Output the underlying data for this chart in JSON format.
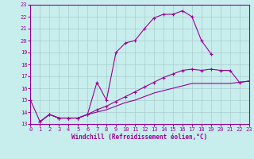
{
  "bg_color": "#c8eded",
  "line_color": "#990099",
  "grid_color": "#aacccc",
  "xlabel": "Windchill (Refroidissement éolien,°C)",
  "xlim": [
    0,
    23
  ],
  "ylim": [
    13,
    23
  ],
  "xticks": [
    0,
    1,
    2,
    3,
    4,
    5,
    6,
    7,
    8,
    9,
    10,
    11,
    12,
    13,
    14,
    15,
    16,
    17,
    18,
    19,
    20,
    21,
    22,
    23
  ],
  "yticks": [
    13,
    14,
    15,
    16,
    17,
    18,
    19,
    20,
    21,
    22,
    23
  ],
  "main_x": [
    0,
    1,
    2,
    3,
    4,
    5,
    6,
    7,
    8,
    9,
    10,
    11,
    12,
    13,
    14,
    15,
    16,
    17,
    18,
    19
  ],
  "main_y": [
    15.0,
    13.2,
    13.8,
    13.5,
    13.5,
    13.5,
    13.8,
    16.5,
    15.0,
    19.0,
    19.8,
    20.0,
    21.0,
    21.9,
    22.2,
    22.2,
    22.5,
    22.0,
    20.0,
    18.9
  ],
  "c2_x": [
    1,
    2,
    3,
    4,
    5,
    6,
    7,
    8,
    9,
    10,
    11,
    12,
    13,
    14,
    15,
    16,
    17,
    18,
    19,
    20,
    21,
    22,
    23
  ],
  "c2_y": [
    13.2,
    13.8,
    13.5,
    13.5,
    13.5,
    13.8,
    14.2,
    14.5,
    14.9,
    15.3,
    15.7,
    16.1,
    16.5,
    16.9,
    17.2,
    17.5,
    17.6,
    17.5,
    17.6,
    17.5,
    17.5,
    16.5,
    16.6
  ],
  "c3_x": [
    1,
    2,
    3,
    4,
    5,
    6,
    7,
    8,
    9,
    10,
    11,
    12,
    13,
    14,
    15,
    16,
    17,
    18,
    19,
    20,
    21,
    22,
    23
  ],
  "c3_y": [
    13.2,
    13.8,
    13.5,
    13.5,
    13.5,
    13.8,
    14.0,
    14.2,
    14.5,
    14.8,
    15.0,
    15.3,
    15.6,
    15.8,
    16.0,
    16.2,
    16.4,
    16.4,
    16.4,
    16.4,
    16.4,
    16.5,
    16.6
  ]
}
